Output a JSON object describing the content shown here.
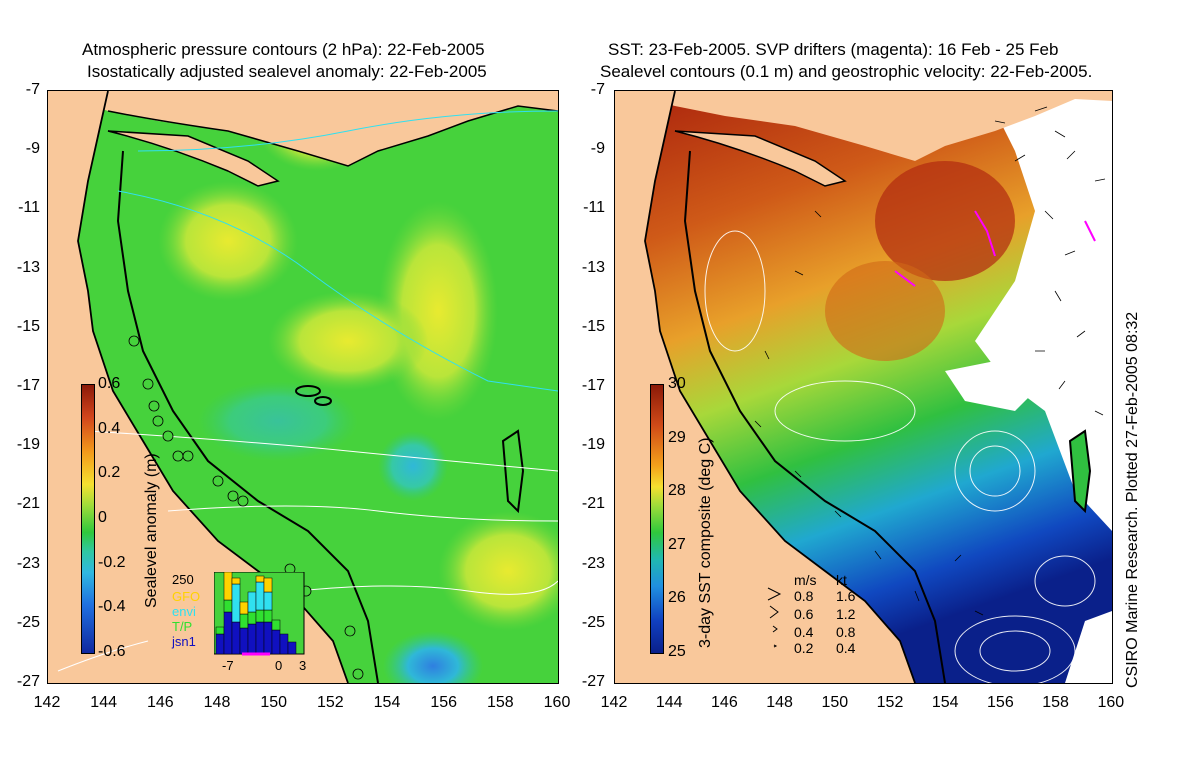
{
  "left_panel": {
    "title_line1": "Atmospheric pressure contours (2 hPa): 22-Feb-2005",
    "title_line2": "Isostatically adjusted sealevel anomaly: 22-Feb-2005",
    "y_ticks": [
      "-7",
      "-9",
      "-11",
      "-13",
      "-15",
      "-17",
      "-19",
      "-21",
      "-23",
      "-25",
      "-27"
    ],
    "x_ticks": [
      "142",
      "144",
      "146",
      "148",
      "150",
      "152",
      "154",
      "156",
      "158",
      "160"
    ],
    "colorbar_label": "Sealevel anomaly (m)",
    "colorbar_ticks": [
      "0.6",
      "0.4",
      "0.2",
      "0",
      "-0.2",
      "-0.4",
      "-0.6"
    ],
    "inset": {
      "ymax_label": "250",
      "legend": [
        {
          "label": "GFO",
          "color": "#ffd200"
        },
        {
          "label": "envi",
          "color": "#30e0f0"
        },
        {
          "label": "T/P",
          "color": "#30e030"
        },
        {
          "label": "jsn1",
          "color": "#1010c0"
        }
      ],
      "x_ticks": [
        "-7",
        "0",
        "3"
      ]
    }
  },
  "right_panel": {
    "title_line1": "SST: 23-Feb-2005. SVP drifters (magenta): 16 Feb - 25 Feb",
    "title_line2": "Sealevel contours (0.1 m) and geostrophic velocity: 22-Feb-2005.",
    "y_ticks": [
      "-7",
      "-9",
      "-11",
      "-13",
      "-15",
      "-17",
      "-19",
      "-21",
      "-23",
      "-25",
      "-27"
    ],
    "x_ticks": [
      "142",
      "144",
      "146",
      "148",
      "150",
      "152",
      "154",
      "156",
      "158",
      "160"
    ],
    "colorbar_label": "3-day SST composite (deg C)",
    "colorbar_ticks": [
      "30",
      "29",
      "28",
      "27",
      "26",
      "25"
    ],
    "velocity_legend": {
      "header_ms": "m/s",
      "header_kt": "kt",
      "rows": [
        {
          "ms": "0.8",
          "kt": "1.6"
        },
        {
          "ms": "0.6",
          "kt": "1.2"
        },
        {
          "ms": "0.4",
          "kt": "0.8"
        },
        {
          "ms": "0.2",
          "kt": "0.4"
        }
      ]
    },
    "credit": "CSIRO Marine Research. Plotted 27-Feb-2005 08:32"
  },
  "colors": {
    "land": "#f9c89b",
    "sla_green": "#3fcf3f",
    "coast": "#000000"
  }
}
